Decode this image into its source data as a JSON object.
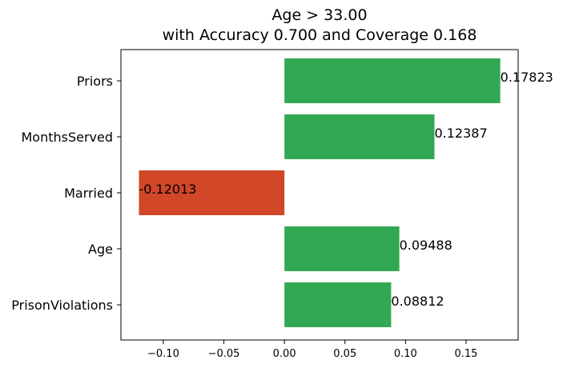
{
  "chart_data": {
    "type": "bar",
    "orientation": "horizontal",
    "title": "Age > 33.00\nwith Accuracy 0.700 and Coverage 0.168",
    "title_lines": [
      "Age > 33.00",
      "with Accuracy 0.700 and Coverage 0.168"
    ],
    "categories": [
      "Priors",
      "MonthsServed",
      "Married",
      "Age",
      "PrisonViolations"
    ],
    "values": [
      0.17823,
      0.12387,
      -0.12013,
      0.09488,
      0.08812
    ],
    "value_labels": [
      "0.17823",
      "0.12387",
      "-0.12013",
      "0.09488",
      "0.08812"
    ],
    "xlabel": "",
    "ylabel": "",
    "xlim": [
      -0.135,
      0.193
    ],
    "xticks": [
      -0.1,
      -0.05,
      0.0,
      0.05,
      0.1,
      0.15
    ],
    "xtick_labels": [
      "−0.10",
      "−0.05",
      "0.00",
      "0.05",
      "0.10",
      "0.15"
    ],
    "grid": false,
    "colors": {
      "positive": "#32a852",
      "negative": "#d14728"
    }
  }
}
